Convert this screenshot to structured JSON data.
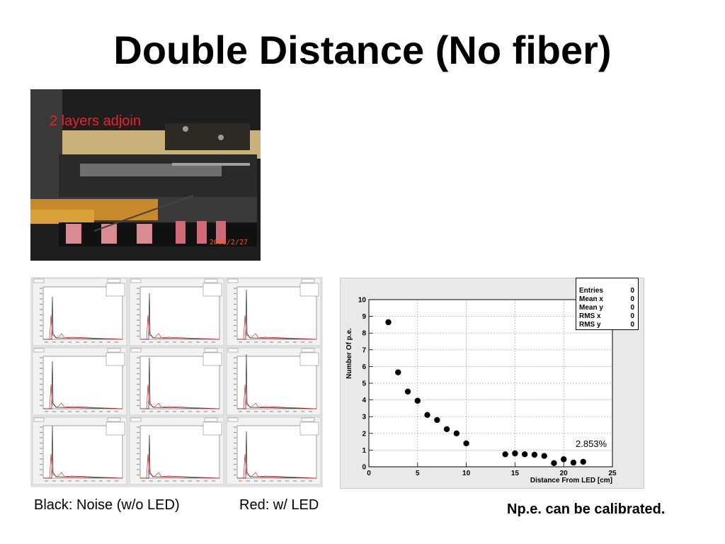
{
  "slide": {
    "title": "Double Distance (No fiber)",
    "photo_caption": "2 layers adjoin",
    "photo_date": "2008/2/27",
    "legend_black": "Black: Noise (w/o LED)",
    "legend_red": "Red: w/ LED",
    "note": "Np.e. can be calibrated."
  },
  "stats": [
    {
      "key": "Entries",
      "value": "0"
    },
    {
      "key": "Mean x",
      "value": "0"
    },
    {
      "key": "Mean y",
      "value": "0"
    },
    {
      "key": "RMS x",
      "value": "0"
    },
    {
      "key": "RMS y",
      "value": "0"
    }
  ],
  "chart_data": {
    "type": "scatter",
    "title": "",
    "xlabel": "Distance From LED [cm]",
    "ylabel": "Number Of p.e.",
    "xlim": [
      0,
      25
    ],
    "ylim": [
      0,
      10
    ],
    "xticks": [
      0,
      5,
      10,
      15,
      20,
      25
    ],
    "yticks": [
      0,
      1,
      2,
      3,
      4,
      5,
      6,
      7,
      8,
      9,
      10
    ],
    "grid": true,
    "annotation": "2.853%",
    "x": [
      2,
      3,
      4,
      5,
      6,
      7,
      8,
      9,
      10,
      14,
      15,
      16,
      17,
      18,
      19,
      20,
      21,
      22
    ],
    "y": [
      8.65,
      5.65,
      4.5,
      3.95,
      3.1,
      2.8,
      2.25,
      2.0,
      1.4,
      0.75,
      0.8,
      0.75,
      0.72,
      0.65,
      0.22,
      0.45,
      0.25,
      0.3
    ]
  },
  "colors": {
    "marker": "#000000",
    "caption_red": "#e8242a"
  }
}
